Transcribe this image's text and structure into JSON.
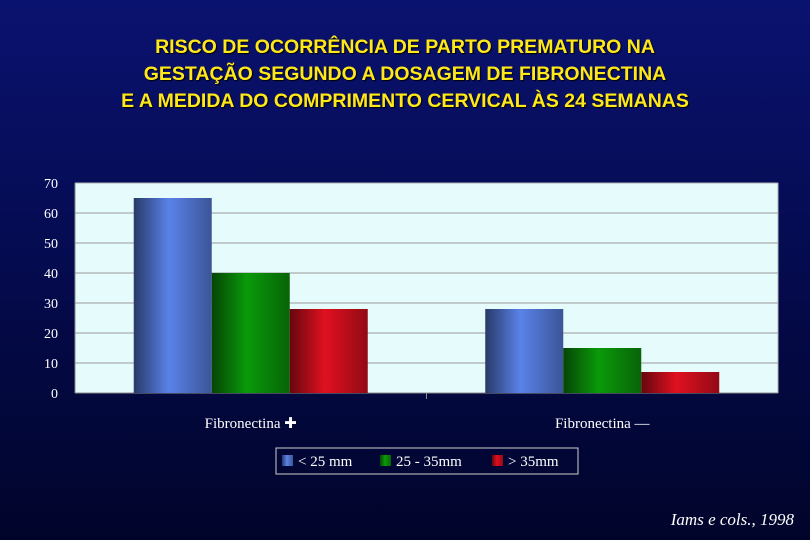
{
  "title_lines": [
    "RISCO DE OCORRÊNCIA DE PARTO PREMATURO NA",
    "GESTAÇÃO SEGUNDO A DOSAGEM DE FIBRONECTINA",
    "E A MEDIDA DO COMPRIMENTO CERVICAL ÀS 24 SEMANAS"
  ],
  "credit": "Iams e cols., 1998",
  "colors": {
    "plot_background": "#e6fbfb",
    "gridline": "#9a9a9a",
    "series": [
      "#5a82e8",
      "#0a9a0a",
      "#e01020"
    ]
  },
  "chart_data": {
    "type": "bar",
    "categories": [
      "Fibronectina ✚",
      "Fibronectina —"
    ],
    "series": [
      {
        "name": "< 25 mm",
        "values": [
          65,
          28
        ]
      },
      {
        "name": "25 - 35mm",
        "values": [
          40,
          15
        ]
      },
      {
        "name": "> 35mm",
        "values": [
          28,
          7
        ]
      }
    ],
    "ylim": [
      0,
      70
    ],
    "yticks": [
      0,
      10,
      20,
      30,
      40,
      50,
      60,
      70
    ],
    "grid": true,
    "legend": "bottom"
  }
}
